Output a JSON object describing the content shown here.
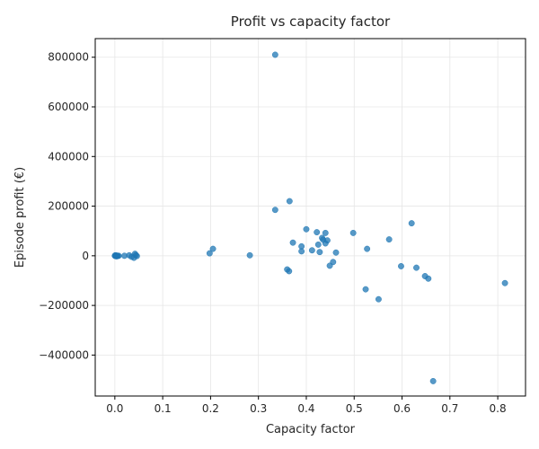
{
  "chart_data": {
    "type": "scatter",
    "title": "Profit vs capacity factor",
    "xlabel": "Capacity factor",
    "ylabel": "Episode profit (€)",
    "xlim": [
      -0.041,
      0.858
    ],
    "ylim": [
      -565000,
      875000
    ],
    "xticks": [
      0.0,
      0.1,
      0.2,
      0.3,
      0.4,
      0.5,
      0.6,
      0.7,
      0.8
    ],
    "xtick_labels": [
      "0.0",
      "0.1",
      "0.2",
      "0.3",
      "0.4",
      "0.5",
      "0.6",
      "0.7",
      "0.8"
    ],
    "yticks": [
      -400000,
      -200000,
      0,
      200000,
      400000,
      600000,
      800000
    ],
    "ytick_labels": [
      "−400000",
      "−200000",
      "0",
      "200000",
      "400000",
      "600000",
      "800000"
    ],
    "grid": true,
    "marker_color": "#1f77b4",
    "points": [
      {
        "x": 0.0,
        "y": 0
      },
      {
        "x": 0.001,
        "y": 2000
      },
      {
        "x": 0.002,
        "y": -1500
      },
      {
        "x": 0.003,
        "y": 1000
      },
      {
        "x": 0.004,
        "y": -2000
      },
      {
        "x": 0.005,
        "y": 500
      },
      {
        "x": 0.006,
        "y": -500
      },
      {
        "x": 0.008,
        "y": 0
      },
      {
        "x": 0.02,
        "y": 0
      },
      {
        "x": 0.03,
        "y": 2000
      },
      {
        "x": 0.035,
        "y": -4000
      },
      {
        "x": 0.04,
        "y": -8000
      },
      {
        "x": 0.042,
        "y": 8000
      },
      {
        "x": 0.044,
        "y": 3000
      },
      {
        "x": 0.046,
        "y": -1000
      },
      {
        "x": 0.198,
        "y": 10000
      },
      {
        "x": 0.205,
        "y": 28000
      },
      {
        "x": 0.282,
        "y": 2000
      },
      {
        "x": 0.335,
        "y": 810000
      },
      {
        "x": 0.335,
        "y": 185000
      },
      {
        "x": 0.365,
        "y": 220000
      },
      {
        "x": 0.36,
        "y": -55000
      },
      {
        "x": 0.364,
        "y": -62000
      },
      {
        "x": 0.372,
        "y": 53000
      },
      {
        "x": 0.39,
        "y": 18000
      },
      {
        "x": 0.39,
        "y": 38000
      },
      {
        "x": 0.4,
        "y": 107000
      },
      {
        "x": 0.412,
        "y": 22000
      },
      {
        "x": 0.422,
        "y": 95000
      },
      {
        "x": 0.425,
        "y": 45000
      },
      {
        "x": 0.428,
        "y": 15000
      },
      {
        "x": 0.433,
        "y": 72000
      },
      {
        "x": 0.435,
        "y": 65000
      },
      {
        "x": 0.44,
        "y": 92000
      },
      {
        "x": 0.44,
        "y": 50000
      },
      {
        "x": 0.444,
        "y": 62000
      },
      {
        "x": 0.449,
        "y": -40000
      },
      {
        "x": 0.456,
        "y": -25000
      },
      {
        "x": 0.462,
        "y": 13000
      },
      {
        "x": 0.498,
        "y": 92000
      },
      {
        "x": 0.524,
        "y": -135000
      },
      {
        "x": 0.527,
        "y": 28000
      },
      {
        "x": 0.551,
        "y": -175000
      },
      {
        "x": 0.573,
        "y": 66000
      },
      {
        "x": 0.598,
        "y": -42000
      },
      {
        "x": 0.62,
        "y": 131000
      },
      {
        "x": 0.63,
        "y": -48000
      },
      {
        "x": 0.648,
        "y": -82000
      },
      {
        "x": 0.655,
        "y": -92000
      },
      {
        "x": 0.665,
        "y": -505000
      },
      {
        "x": 0.815,
        "y": -110000
      }
    ]
  }
}
